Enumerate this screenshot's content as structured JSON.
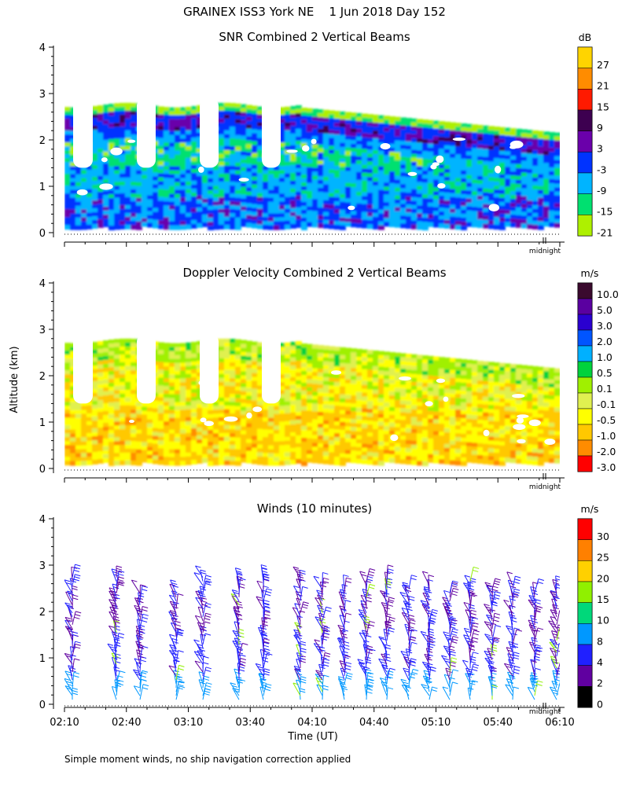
{
  "page": {
    "title": "GRAINEX ISS3 York NE    1 Jun 2018 Day 152",
    "footnote": "Simple moment winds, no ship navigation correction applied",
    "y_axis_label": "Altitude (km)",
    "x_axis_label": "Time (UT)",
    "midnight_label": "midnight"
  },
  "chart_data": [
    {
      "type": "heatmap",
      "title": "SNR Combined 2 Vertical Beams",
      "ylabel": "Altitude (km)",
      "ylim": [
        0,
        4
      ],
      "yticks": [
        0,
        1,
        2,
        3,
        4
      ],
      "xlim": [
        "02:10",
        "06:10"
      ],
      "colorbar": {
        "unit": "dB",
        "labels": [
          "27",
          "21",
          "15",
          "9",
          "3",
          "-3",
          "-9",
          "-15",
          "-21"
        ],
        "colors": [
          "#ffd400",
          "#ff8c00",
          "#ff1a00",
          "#3d0050",
          "#6a00aa",
          "#0033ff",
          "#00b4ff",
          "#00e070",
          "#aef000"
        ]
      }
    },
    {
      "type": "heatmap",
      "title": "Doppler Velocity Combined 2 Vertical Beams",
      "ylabel": "Altitude (km)",
      "ylim": [
        0,
        4
      ],
      "yticks": [
        0,
        1,
        2,
        3,
        4
      ],
      "xlim": [
        "02:10",
        "06:10"
      ],
      "colorbar": {
        "unit": "m/s",
        "labels": [
          "10.0",
          "5.0",
          "3.0",
          "2.0",
          "1.0",
          "0.5",
          "0.1",
          "-0.1",
          "-0.5",
          "-1.0",
          "-2.0",
          "-3.0"
        ],
        "colors": [
          "#3a0a2e",
          "#5a00a0",
          "#2a00d0",
          "#0055ff",
          "#00b0ff",
          "#00d23c",
          "#a0f000",
          "#e0f050",
          "#ffff00",
          "#ffc800",
          "#ff8c00",
          "#ff0000"
        ]
      }
    },
    {
      "type": "scatter",
      "title": "Winds (10 minutes)",
      "ylabel": "Altitude (km)",
      "xlabel": "Time (UT)",
      "ylim": [
        0,
        4
      ],
      "yticks": [
        0,
        1,
        2,
        3,
        4
      ],
      "x": [
        "02:10",
        "02:40",
        "03:10",
        "03:40",
        "04:10",
        "04:40",
        "05:10",
        "05:40",
        "06:10"
      ],
      "colorbar": {
        "unit": "m/s",
        "labels": [
          "30",
          "25",
          "20",
          "15",
          "10",
          "8",
          "4",
          "2",
          "0"
        ],
        "colors": [
          "#ff0000",
          "#ff8000",
          "#ffd000",
          "#90f000",
          "#00d87a",
          "#0098ff",
          "#2020ff",
          "#6000a0",
          "#000000"
        ]
      }
    }
  ]
}
